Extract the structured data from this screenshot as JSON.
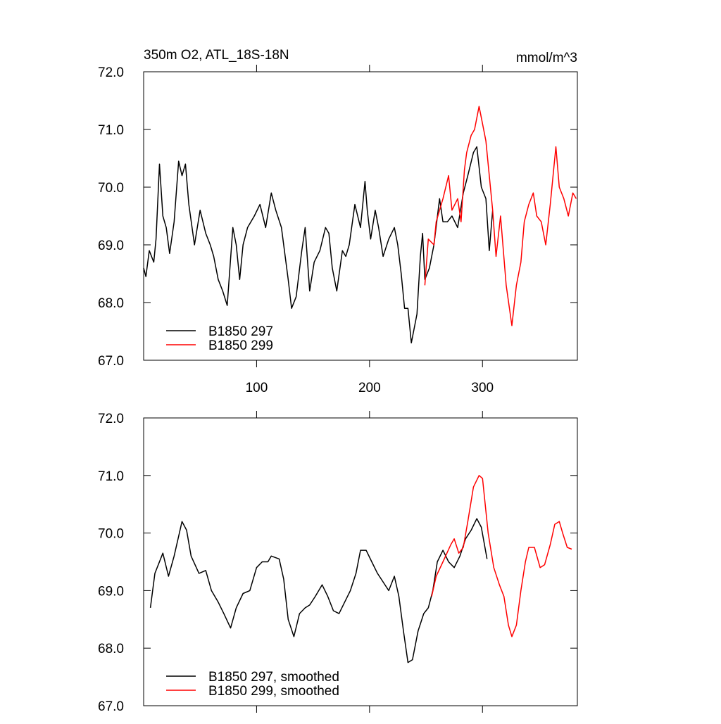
{
  "chart_data": [
    {
      "type": "line",
      "title": "350m O2, ATL_18S-18N",
      "units": "mmol/m^3",
      "xlim": [
        0,
        384
      ],
      "ylim": [
        67,
        72
      ],
      "xticks": [
        100,
        200,
        300
      ],
      "show_x_tick_labels": true,
      "yticks": [
        {
          "value": 67,
          "label": "67.0"
        },
        {
          "value": 68,
          "label": "68.0"
        },
        {
          "value": 69,
          "label": "69.0"
        },
        {
          "value": 70,
          "label": "70.0"
        },
        {
          "value": 71,
          "label": "71.0"
        },
        {
          "value": 72,
          "label": "72.0"
        }
      ],
      "legend": "lower left",
      "series": [
        {
          "name": "B1850 297",
          "color": "#000000",
          "x": [
            0,
            2,
            5,
            9,
            11,
            14,
            17,
            20,
            23,
            27,
            31,
            34,
            37,
            40,
            45,
            50,
            55,
            59,
            62,
            66,
            70,
            74,
            79,
            82,
            85,
            88,
            92,
            98,
            103,
            108,
            113,
            117,
            122,
            128,
            131,
            135,
            140,
            143,
            147,
            151,
            156,
            161,
            164,
            167,
            171,
            176,
            179,
            182,
            187,
            192,
            196,
            198,
            201,
            205,
            208,
            212,
            217,
            222,
            225,
            228,
            231,
            234,
            237,
            242,
            245,
            247,
            249,
            253,
            257,
            262,
            265,
            269,
            273,
            278,
            283,
            287,
            292,
            295,
            299,
            303,
            306,
            309
          ],
          "values": [
            68.6,
            68.45,
            68.9,
            68.7,
            69.1,
            70.4,
            69.5,
            69.3,
            68.85,
            69.4,
            70.45,
            70.2,
            70.4,
            69.7,
            69.0,
            69.6,
            69.2,
            69.0,
            68.8,
            68.4,
            68.2,
            67.95,
            69.3,
            69.0,
            68.4,
            69.0,
            69.3,
            69.5,
            69.7,
            69.3,
            69.9,
            69.6,
            69.3,
            68.4,
            67.9,
            68.1,
            68.9,
            69.3,
            68.2,
            68.7,
            68.9,
            69.3,
            69.2,
            68.6,
            68.2,
            68.9,
            68.8,
            69.0,
            69.7,
            69.3,
            70.1,
            69.6,
            69.1,
            69.6,
            69.3,
            68.8,
            69.1,
            69.3,
            69.0,
            68.5,
            67.9,
            67.9,
            67.3,
            67.8,
            68.8,
            69.2,
            68.4,
            68.6,
            69.0,
            69.8,
            69.4,
            69.4,
            69.5,
            69.3,
            69.9,
            70.2,
            70.6,
            70.7,
            70.0,
            69.8,
            68.9,
            69.6
          ]
        },
        {
          "name": "B1850 299",
          "color": "#ff0000",
          "x": [
            249,
            252,
            257,
            259,
            265,
            270,
            273,
            278,
            281,
            284,
            286,
            290,
            293,
            297,
            300,
            303,
            306,
            309,
            312,
            316,
            321,
            326,
            330,
            334,
            337,
            341,
            345,
            348,
            352,
            356,
            360,
            365,
            368,
            372,
            376,
            380,
            383
          ],
          "values": [
            68.3,
            69.1,
            69.0,
            69.4,
            69.8,
            70.2,
            69.6,
            69.8,
            69.4,
            70.3,
            70.6,
            70.9,
            71.0,
            71.4,
            71.1,
            70.8,
            70.2,
            69.6,
            68.8,
            69.5,
            68.3,
            67.6,
            68.3,
            68.7,
            69.4,
            69.7,
            69.9,
            69.5,
            69.4,
            69.0,
            69.7,
            70.7,
            70.0,
            69.8,
            69.5,
            69.9,
            69.8
          ]
        }
      ]
    },
    {
      "type": "line",
      "xlim": [
        0,
        384
      ],
      "ylim": [
        67,
        72
      ],
      "xticks": [
        100,
        200,
        300
      ],
      "show_x_tick_labels": false,
      "yticks": [
        {
          "value": 67,
          "label": "67.0"
        },
        {
          "value": 68,
          "label": "68.0"
        },
        {
          "value": 69,
          "label": "69.0"
        },
        {
          "value": 70,
          "label": "70.0"
        },
        {
          "value": 71,
          "label": "71.0"
        },
        {
          "value": 72,
          "label": "72.0"
        }
      ],
      "legend": "lower left",
      "series": [
        {
          "name": "B1850 297, smoothed",
          "color": "#000000",
          "x": [
            6,
            10,
            17,
            22,
            27,
            34,
            38,
            42,
            49,
            55,
            60,
            66,
            71,
            77,
            82,
            88,
            94,
            100,
            105,
            110,
            113,
            120,
            124,
            128,
            133,
            138,
            143,
            147,
            152,
            158,
            163,
            168,
            173,
            178,
            183,
            188,
            192,
            197,
            202,
            207,
            212,
            217,
            222,
            226,
            230,
            234,
            238,
            243,
            248,
            252,
            256,
            260,
            265,
            270,
            275,
            280,
            285,
            290,
            295,
            299,
            304
          ],
          "values": [
            68.7,
            69.3,
            69.65,
            69.25,
            69.6,
            70.2,
            70.05,
            69.6,
            69.3,
            69.35,
            69.0,
            68.8,
            68.6,
            68.35,
            68.7,
            68.95,
            69.0,
            69.4,
            69.5,
            69.5,
            69.6,
            69.55,
            69.2,
            68.5,
            68.2,
            68.6,
            68.7,
            68.75,
            68.9,
            69.1,
            68.9,
            68.65,
            68.6,
            68.8,
            69.0,
            69.3,
            69.7,
            69.7,
            69.5,
            69.3,
            69.15,
            69.0,
            69.25,
            68.9,
            68.3,
            67.75,
            67.8,
            68.3,
            68.6,
            68.7,
            69.0,
            69.5,
            69.7,
            69.5,
            69.4,
            69.6,
            69.9,
            70.05,
            70.25,
            70.1,
            69.55
          ]
        },
        {
          "name": "B1850 299, smoothed",
          "color": "#ff0000",
          "x": [
            255,
            259,
            265,
            272,
            275,
            279,
            283,
            287,
            292,
            297,
            300,
            305,
            310,
            315,
            319,
            323,
            326,
            330,
            334,
            338,
            341,
            346,
            351,
            355,
            360,
            364,
            368,
            371,
            375,
            379
          ],
          "values": [
            68.9,
            69.25,
            69.5,
            69.8,
            69.9,
            69.65,
            69.75,
            70.2,
            70.8,
            71.0,
            70.95,
            70.0,
            69.4,
            69.1,
            68.9,
            68.4,
            68.2,
            68.4,
            69.0,
            69.5,
            69.75,
            69.75,
            69.4,
            69.45,
            69.8,
            70.15,
            70.2,
            70.0,
            69.75,
            69.72
          ]
        }
      ]
    }
  ]
}
